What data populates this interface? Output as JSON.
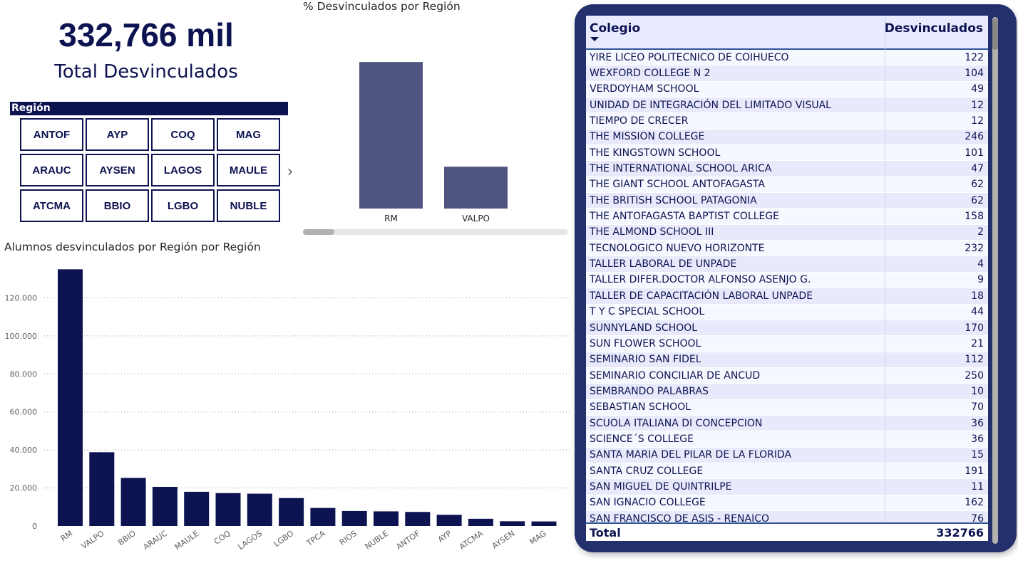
{
  "kpi": {
    "value": "332,766 mil",
    "label": "Total Desvinculados"
  },
  "slicer": {
    "title": "Región",
    "buttons": [
      "ANTOF",
      "AYP",
      "COQ",
      "MAG",
      "ARAUC",
      "AYSEN",
      "LAGOS",
      "MAULE",
      "ATCMA",
      "BBIO",
      "LGBO",
      "NUBLE"
    ],
    "next_icon": "chevron-right-icon"
  },
  "pct_chart": {
    "title": "% Desvinculados por Región"
  },
  "bar_chart": {
    "title": "Alumnos desvinculados por Región por Región"
  },
  "chart_data": [
    {
      "type": "bar",
      "title": "% Desvinculados por Región",
      "categories": [
        "RM",
        "VALPO"
      ],
      "values": [
        40.6,
        11.6
      ],
      "ylim": [
        0,
        42
      ],
      "color": "#4f5580",
      "grid": false
    },
    {
      "type": "bar",
      "title": "Alumnos desvinculados por Región por Región",
      "categories": [
        "RM",
        "VALPO",
        "BBIO",
        "ARAUC",
        "MAULE",
        "COQ",
        "LAGOS",
        "LGBO",
        "TPCA",
        "RIOS",
        "NUBLE",
        "ANTOF",
        "AYP",
        "ATCMA",
        "AYSEN",
        "MAG"
      ],
      "values": [
        135000,
        38800,
        25300,
        20600,
        18000,
        17300,
        17000,
        14700,
        9500,
        7900,
        7700,
        7400,
        5900,
        3800,
        2500,
        2400
      ],
      "yticks": [
        0,
        20000,
        40000,
        60000,
        80000,
        100000,
        120000
      ],
      "ytick_labels": [
        "0",
        "20.000",
        "40.000",
        "60.000",
        "80.000",
        "100.000",
        "120.000"
      ],
      "ylim": [
        0,
        137000
      ],
      "color": "#0c1350",
      "grid": true
    }
  ],
  "table": {
    "columns": [
      "Colegio",
      "Desvinculados"
    ],
    "rows": [
      [
        "YIRE LICEO POLITECNICO DE COIHUECO",
        "122"
      ],
      [
        "WEXFORD COLLEGE N 2",
        "104"
      ],
      [
        "VERDOYHAM SCHOOL",
        "49"
      ],
      [
        "UNIDAD DE INTEGRACIÓN DEL LIMITADO VISUAL",
        "12"
      ],
      [
        "TIEMPO DE CRECER",
        "12"
      ],
      [
        "THE MISSION COLLEGE",
        "246"
      ],
      [
        "THE KINGSTOWN SCHOOL",
        "101"
      ],
      [
        "THE INTERNATIONAL SCHOOL ARICA",
        "47"
      ],
      [
        "THE GIANT SCHOOL ANTOFAGASTA",
        "62"
      ],
      [
        "THE BRITISH SCHOOL PATAGONIA",
        "62"
      ],
      [
        "THE ANTOFAGASTA BAPTIST COLLEGE",
        "158"
      ],
      [
        "THE ALMOND SCHOOL III",
        "2"
      ],
      [
        "TECNOLOGICO NUEVO HORIZONTE",
        "232"
      ],
      [
        "TALLER LABORAL DE UNPADE",
        "4"
      ],
      [
        "TALLER DIFER.DOCTOR ALFONSO ASENJO G.",
        "9"
      ],
      [
        "TALLER DE CAPACITACIÓN LABORAL UNPADE",
        "18"
      ],
      [
        "T Y C SPECIAL SCHOOL",
        "44"
      ],
      [
        "SUNNYLAND SCHOOL",
        "170"
      ],
      [
        "SUN FLOWER SCHOOL",
        "21"
      ],
      [
        "SEMINARIO SAN FIDEL",
        "112"
      ],
      [
        "SEMINARIO CONCILIAR DE ANCUD",
        "250"
      ],
      [
        "SEMBRANDO PALABRAS",
        "10"
      ],
      [
        "SEBASTIAN SCHOOL",
        "70"
      ],
      [
        "SCUOLA ITALIANA DI CONCEPCION",
        "36"
      ],
      [
        "SCIENCE´S COLLEGE",
        "36"
      ],
      [
        "SANTA MARIA DEL PILAR DE LA FLORIDA",
        "15"
      ],
      [
        "SANTA CRUZ COLLEGE",
        "191"
      ],
      [
        "SAN MIGUEL DE QUINTRILPE",
        "11"
      ],
      [
        "SAN IGNACIO COLLEGE",
        "162"
      ],
      [
        "SAN FRANCISCO DE ASIS - RENAICO",
        "76"
      ]
    ],
    "total_label": "Total",
    "total_value": "332766",
    "sort_icon": "sort-descending-icon"
  },
  "colors": {
    "navy": "#0c1350",
    "bar_muted": "#4f5580",
    "card": "#24306b"
  }
}
